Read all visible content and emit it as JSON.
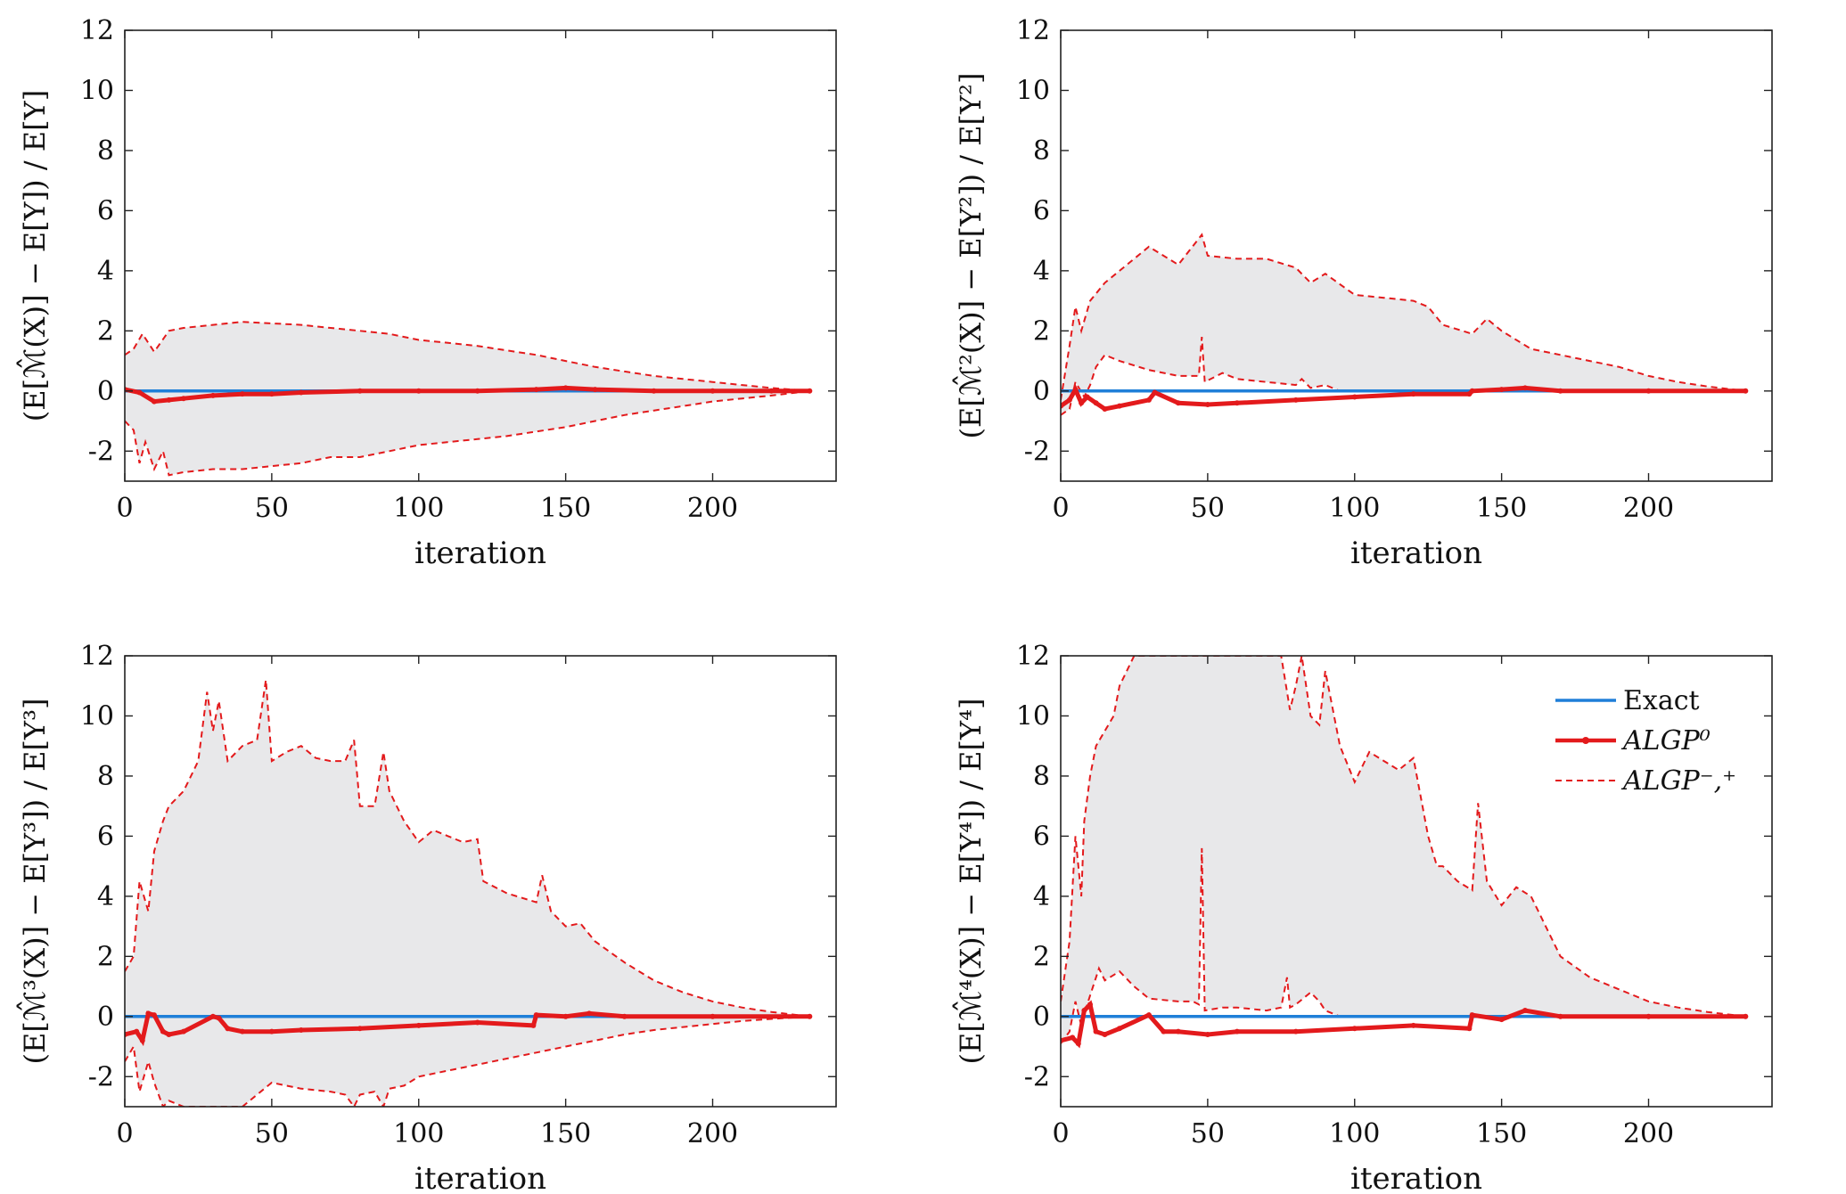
{
  "colors": {
    "exact": "#1f7fd8",
    "algp0": "#e31a1c",
    "bounds": "#e31a1c",
    "band": "#e8e8ea",
    "axis": "#222222"
  },
  "legend": {
    "items": [
      {
        "label": "Exact",
        "style": "solid-blue"
      },
      {
        "label": "ALGP⁰",
        "style": "solid-red-marker"
      },
      {
        "label": "ALGP⁻,⁺",
        "style": "dashed-red"
      }
    ]
  },
  "chart_data": [
    {
      "type": "line",
      "xlabel": "iteration",
      "ylabel": "(E[ℳ̂(X)] − E[Y]) / E[Y]",
      "xlim": [
        0,
        242
      ],
      "ylim": [
        -3,
        12
      ],
      "xticks": [
        0,
        50,
        100,
        150,
        200
      ],
      "yticks": [
        -2,
        0,
        2,
        4,
        6,
        8,
        10,
        12
      ],
      "grid": false,
      "series": [
        {
          "name": "Exact",
          "x": [
            0,
            233
          ],
          "y": [
            0,
            0
          ]
        },
        {
          "name": "ALGP⁰",
          "x": [
            0,
            5,
            10,
            15,
            20,
            30,
            40,
            50,
            60,
            80,
            100,
            120,
            140,
            150,
            160,
            180,
            200,
            220,
            233
          ],
          "y": [
            0.05,
            -0.05,
            -0.35,
            -0.3,
            -0.25,
            -0.15,
            -0.1,
            -0.1,
            -0.05,
            0,
            0,
            0,
            0.05,
            0.1,
            0.05,
            0,
            0,
            0,
            0
          ]
        },
        {
          "name": "ALGP⁻,⁺ upper",
          "x": [
            0,
            3,
            6,
            10,
            15,
            20,
            30,
            40,
            50,
            60,
            70,
            80,
            90,
            100,
            110,
            120,
            130,
            140,
            150,
            160,
            170,
            180,
            190,
            200,
            210,
            220,
            233
          ],
          "y": [
            1.2,
            1.4,
            1.9,
            1.3,
            2.0,
            2.1,
            2.2,
            2.3,
            2.25,
            2.2,
            2.1,
            2.0,
            1.9,
            1.7,
            1.6,
            1.5,
            1.35,
            1.2,
            1.0,
            0.8,
            0.65,
            0.5,
            0.4,
            0.3,
            0.2,
            0.1,
            0
          ]
        },
        {
          "name": "ALGP⁻,⁺ lower",
          "x": [
            0,
            3,
            5,
            7,
            10,
            13,
            15,
            20,
            30,
            40,
            50,
            60,
            70,
            80,
            90,
            100,
            110,
            120,
            130,
            140,
            150,
            160,
            170,
            180,
            190,
            200,
            210,
            220,
            233
          ],
          "y": [
            -1.0,
            -1.3,
            -2.4,
            -1.7,
            -2.6,
            -2.0,
            -2.8,
            -2.7,
            -2.6,
            -2.6,
            -2.5,
            -2.4,
            -2.2,
            -2.2,
            -2.0,
            -1.8,
            -1.7,
            -1.6,
            -1.5,
            -1.35,
            -1.2,
            -1.0,
            -0.8,
            -0.65,
            -0.5,
            -0.35,
            -0.25,
            -0.15,
            0
          ]
        }
      ]
    },
    {
      "type": "line",
      "xlabel": "iteration",
      "ylabel": "(E[ℳ̂²(X)] − E[Y²]) / E[Y²]",
      "xlim": [
        0,
        242
      ],
      "ylim": [
        -3,
        12
      ],
      "xticks": [
        0,
        50,
        100,
        150,
        200
      ],
      "yticks": [
        -2,
        0,
        2,
        4,
        6,
        8,
        10,
        12
      ],
      "grid": false,
      "series": [
        {
          "name": "Exact",
          "x": [
            0,
            233
          ],
          "y": [
            0,
            0
          ]
        },
        {
          "name": "ALGP⁰",
          "x": [
            0,
            3,
            5,
            7,
            9,
            12,
            15,
            20,
            30,
            32,
            40,
            50,
            60,
            80,
            100,
            120,
            139,
            140,
            150,
            158,
            170,
            200,
            233
          ],
          "y": [
            -0.5,
            -0.3,
            0.05,
            -0.4,
            -0.2,
            -0.4,
            -0.6,
            -0.5,
            -0.3,
            -0.05,
            -0.4,
            -0.45,
            -0.4,
            -0.3,
            -0.2,
            -0.1,
            -0.1,
            0,
            0.05,
            0.1,
            0,
            0,
            0
          ]
        },
        {
          "name": "ALGP⁻,⁺ upper",
          "x": [
            0,
            3,
            5,
            7,
            10,
            15,
            20,
            25,
            30,
            35,
            40,
            48,
            50,
            60,
            70,
            80,
            85,
            90,
            100,
            110,
            120,
            125,
            130,
            140,
            145,
            150,
            160,
            170,
            180,
            190,
            200,
            210,
            220,
            233
          ],
          "y": [
            -0.3,
            1.5,
            2.8,
            2.0,
            3.0,
            3.6,
            4.0,
            4.4,
            4.8,
            4.5,
            4.2,
            5.2,
            4.5,
            4.4,
            4.4,
            4.1,
            3.6,
            3.9,
            3.2,
            3.1,
            3.0,
            2.8,
            2.2,
            1.9,
            2.4,
            2.0,
            1.4,
            1.2,
            1.0,
            0.8,
            0.5,
            0.3,
            0.15,
            0
          ]
        },
        {
          "name": "ALGP⁻,⁺ lower",
          "x": [
            0,
            3,
            5,
            8,
            10,
            12,
            15,
            20,
            30,
            40,
            47,
            48,
            49,
            55,
            60,
            70,
            80,
            82,
            85,
            90,
            95,
            233
          ],
          "y": [
            -0.8,
            -0.6,
            0.3,
            -0.2,
            0.2,
            0.8,
            1.2,
            1.0,
            0.7,
            0.5,
            0.5,
            1.8,
            0.3,
            0.6,
            0.4,
            0.3,
            0.2,
            0.4,
            0.1,
            0.2,
            0,
            0
          ]
        }
      ]
    },
    {
      "type": "line",
      "xlabel": "iteration",
      "ylabel": "(E[ℳ̂³(X)] − E[Y³]) / E[Y³]",
      "xlim": [
        0,
        242
      ],
      "ylim": [
        -3,
        12
      ],
      "xticks": [
        0,
        50,
        100,
        150,
        200
      ],
      "yticks": [
        -2,
        0,
        2,
        4,
        6,
        8,
        10,
        12
      ],
      "grid": false,
      "series": [
        {
          "name": "Exact",
          "x": [
            0,
            233
          ],
          "y": [
            0,
            0
          ]
        },
        {
          "name": "ALGP⁰",
          "x": [
            0,
            4,
            6,
            8,
            10,
            13,
            15,
            20,
            30,
            32,
            35,
            40,
            50,
            60,
            80,
            100,
            120,
            139,
            140,
            150,
            158,
            170,
            200,
            233
          ],
          "y": [
            -0.6,
            -0.5,
            -0.8,
            0.1,
            0.05,
            -0.5,
            -0.6,
            -0.5,
            0,
            -0.05,
            -0.4,
            -0.5,
            -0.5,
            -0.45,
            -0.4,
            -0.3,
            -0.2,
            -0.3,
            0.05,
            0,
            0.1,
            0,
            0,
            0
          ]
        },
        {
          "name": "ALGP⁻,⁺ upper",
          "x": [
            0,
            3,
            5,
            8,
            10,
            13,
            15,
            20,
            25,
            28,
            30,
            32,
            35,
            40,
            45,
            48,
            50,
            55,
            60,
            65,
            70,
            75,
            78,
            80,
            85,
            88,
            90,
            95,
            100,
            105,
            110,
            115,
            120,
            122,
            130,
            140,
            142,
            145,
            150,
            155,
            160,
            170,
            180,
            190,
            200,
            210,
            220,
            233
          ],
          "y": [
            1.5,
            2.0,
            4.5,
            3.5,
            5.5,
            6.5,
            7.0,
            7.5,
            8.5,
            10.8,
            9.5,
            10.5,
            8.5,
            9.0,
            9.2,
            11.2,
            8.5,
            8.8,
            9.0,
            8.6,
            8.5,
            8.5,
            9.2,
            7.0,
            7.0,
            8.8,
            7.5,
            6.5,
            5.8,
            6.2,
            6.0,
            5.8,
            5.9,
            4.5,
            4.1,
            3.8,
            4.7,
            3.5,
            3.0,
            3.1,
            2.5,
            1.8,
            1.2,
            0.8,
            0.5,
            0.3,
            0.15,
            0
          ]
        },
        {
          "name": "ALGP⁻,⁺ lower",
          "x": [
            0,
            3,
            5,
            8,
            10,
            13,
            15,
            20,
            30,
            40,
            50,
            60,
            70,
            75,
            78,
            80,
            85,
            88,
            90,
            95,
            100,
            110,
            120,
            130,
            140,
            150,
            160,
            170,
            180,
            190,
            200,
            210,
            220,
            233
          ],
          "y": [
            -1.5,
            -1.0,
            -2.5,
            -1.5,
            -2.2,
            -3.0,
            -2.8,
            -3.0,
            -3.0,
            -3.0,
            -2.2,
            -2.4,
            -2.5,
            -2.6,
            -3.0,
            -2.6,
            -2.5,
            -3.0,
            -2.4,
            -2.3,
            -2.0,
            -1.8,
            -1.6,
            -1.4,
            -1.2,
            -1.0,
            -0.8,
            -0.6,
            -0.45,
            -0.35,
            -0.25,
            -0.15,
            -0.08,
            0
          ]
        }
      ]
    },
    {
      "type": "line",
      "xlabel": "iteration",
      "ylabel": "(E[ℳ̂⁴(X)] − E[Y⁴]) / E[Y⁴]",
      "xlim": [
        0,
        242
      ],
      "ylim": [
        -3,
        12
      ],
      "xticks": [
        0,
        50,
        100,
        150,
        200
      ],
      "yticks": [
        -2,
        0,
        2,
        4,
        6,
        8,
        10,
        12
      ],
      "grid": false,
      "series": [
        {
          "name": "Exact",
          "x": [
            0,
            233
          ],
          "y": [
            0,
            0
          ]
        },
        {
          "name": "ALGP⁰",
          "x": [
            0,
            4,
            6,
            8,
            10,
            12,
            15,
            20,
            30,
            35,
            40,
            50,
            60,
            80,
            100,
            120,
            139,
            140,
            150,
            158,
            170,
            200,
            233
          ],
          "y": [
            -0.8,
            -0.7,
            -0.9,
            0.2,
            0.4,
            -0.5,
            -0.6,
            -0.4,
            0.05,
            -0.5,
            -0.5,
            -0.6,
            -0.5,
            -0.5,
            -0.4,
            -0.3,
            -0.4,
            0.05,
            -0.1,
            0.2,
            0,
            0,
            0
          ]
        },
        {
          "name": "ALGP⁻,⁺ upper",
          "x": [
            0,
            3,
            5,
            7,
            8,
            10,
            12,
            15,
            18,
            20,
            25,
            30,
            35,
            40,
            50,
            60,
            70,
            75,
            78,
            80,
            82,
            85,
            88,
            90,
            95,
            100,
            105,
            110,
            115,
            120,
            125,
            128,
            130,
            135,
            140,
            142,
            145,
            150,
            155,
            160,
            170,
            180,
            190,
            200,
            210,
            220,
            233
          ],
          "y": [
            0.5,
            2.5,
            6.0,
            4.0,
            6.5,
            8.0,
            9.0,
            9.5,
            10.0,
            11.0,
            12.0,
            12.0,
            12.0,
            12.0,
            12.0,
            12.0,
            12.0,
            12.0,
            10.2,
            11.0,
            12.0,
            10.0,
            9.7,
            11.5,
            9.0,
            7.8,
            8.8,
            8.5,
            8.2,
            8.6,
            6.0,
            5.0,
            5.0,
            4.5,
            4.2,
            7.1,
            4.5,
            3.7,
            4.3,
            4.0,
            2.0,
            1.3,
            0.9,
            0.5,
            0.3,
            0.15,
            0
          ]
        },
        {
          "name": "ALGP⁻,⁺ lower",
          "x": [
            0,
            3,
            5,
            7,
            9,
            11,
            13,
            15,
            20,
            25,
            30,
            40,
            45,
            47,
            48,
            49,
            55,
            60,
            70,
            75,
            77,
            78,
            80,
            85,
            88,
            90,
            95,
            233
          ],
          "y": [
            -0.9,
            -0.5,
            0.5,
            -0.3,
            0.4,
            1.0,
            1.6,
            1.2,
            1.5,
            1.0,
            0.6,
            0.5,
            0.5,
            0.4,
            5.6,
            0.2,
            0.3,
            0.3,
            0.2,
            0.3,
            1.3,
            0.3,
            0.4,
            0.8,
            0.5,
            0.2,
            0,
            0
          ]
        }
      ]
    }
  ]
}
